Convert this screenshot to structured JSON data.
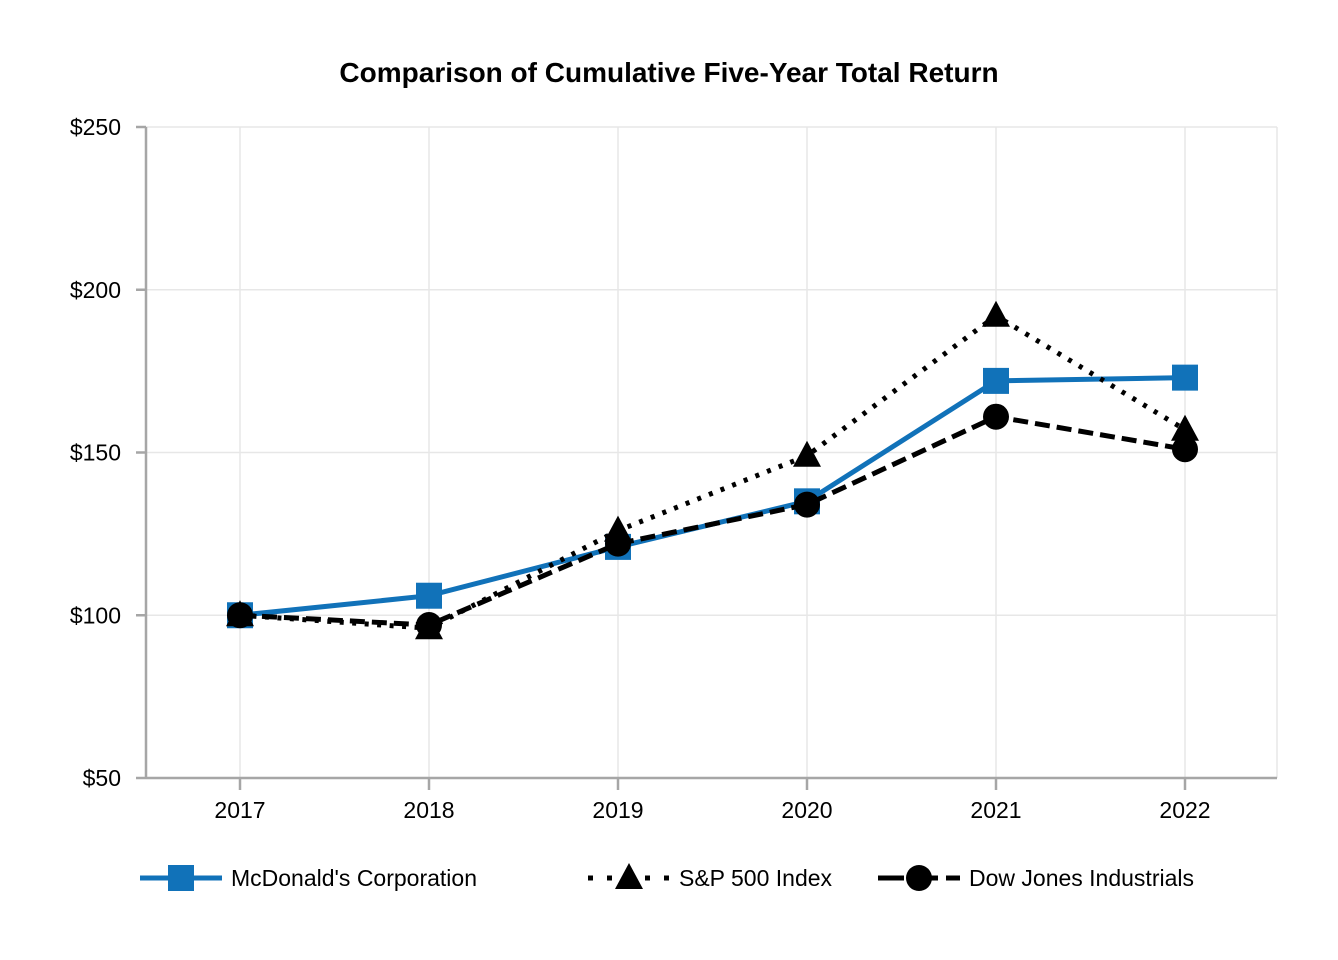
{
  "chart_data": {
    "type": "line",
    "title": "Comparison of Cumulative Five-Year Total Return",
    "xlabel": "",
    "ylabel": "",
    "x_categories": [
      "2017",
      "2018",
      "2019",
      "2020",
      "2021",
      "2022"
    ],
    "ylim": [
      50,
      250
    ],
    "y_ticks": {
      "values": [
        50,
        100,
        150,
        200,
        250
      ],
      "labels": [
        "$50",
        "$100",
        "$150",
        "$200",
        "$250"
      ]
    },
    "grid": true,
    "legend_position": "bottom",
    "series": [
      {
        "name": "McDonald's Corporation",
        "color": "#1172b9",
        "marker": "square",
        "line_style": "solid",
        "values": [
          100,
          106,
          121,
          135,
          172,
          173
        ]
      },
      {
        "name": "S&P 500 Index",
        "color": "#000000",
        "marker": "triangle",
        "line_style": "dotted",
        "values": [
          100,
          96,
          126,
          149,
          192,
          157
        ]
      },
      {
        "name": "Dow Jones Industrials",
        "color": "#000000",
        "marker": "circle",
        "line_style": "dashed",
        "values": [
          100,
          97,
          122,
          134,
          161,
          151
        ]
      }
    ],
    "axis_color": "#a6a6a6",
    "gridline_color": "#e7e7e7",
    "text_color": "#000000",
    "background": "#ffffff"
  }
}
